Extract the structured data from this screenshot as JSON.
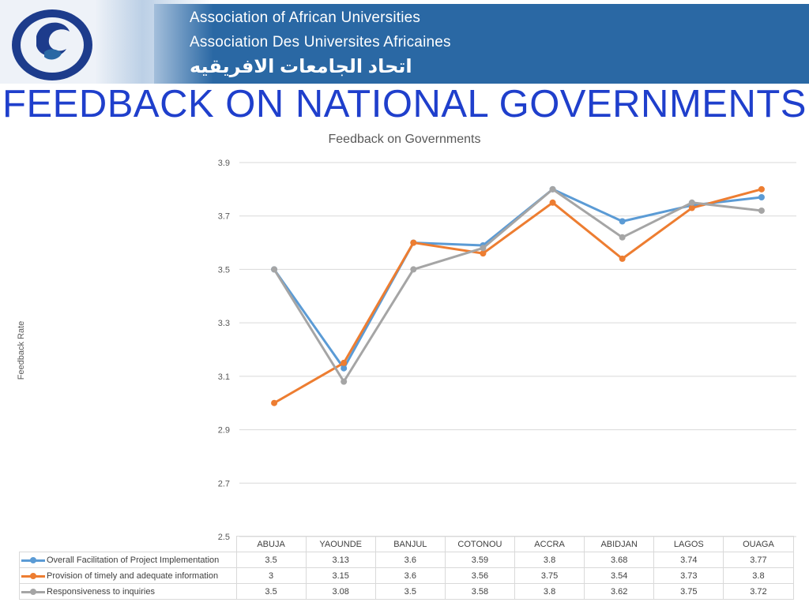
{
  "header": {
    "org_en": "Association of African Universities",
    "org_fr": "Association Des Universites Africaines",
    "org_ar": "اتحاد الجامعات الافريقيه"
  },
  "slide": {
    "title": "FEEDBACK ON NATIONAL GOVERNMENTS"
  },
  "chart_data": {
    "type": "line",
    "title": "Feedback on Governments",
    "xlabel": "",
    "ylabel": "Feedback Rate",
    "ylim": [
      2.5,
      3.9
    ],
    "yticks": [
      "3.9",
      "3.7",
      "3.5",
      "3.3",
      "3.1",
      "2.9",
      "2.7",
      "2.5"
    ],
    "grid": true,
    "legend": "data-table",
    "categories": [
      "ABUJA",
      "YAOUNDE",
      "BANJUL",
      "COTONOU",
      "ACCRA",
      "ABIDJAN",
      "LAGOS",
      "OUAGA"
    ],
    "series": [
      {
        "name": "Overall Facilitation of Project Implementation",
        "color": "#5b9bd5",
        "values": [
          3.5,
          3.13,
          3.6,
          3.59,
          3.8,
          3.68,
          3.74,
          3.77
        ],
        "labels": [
          "3.5",
          "3.13",
          "3.6",
          "3.59",
          "3.8",
          "3.68",
          "3.74",
          "3.77"
        ]
      },
      {
        "name": "Provision of timely and adequate information",
        "color": "#ed7d31",
        "values": [
          3,
          3.15,
          3.6,
          3.56,
          3.75,
          3.54,
          3.73,
          3.8
        ],
        "labels": [
          "3",
          "3.15",
          "3.6",
          "3.56",
          "3.75",
          "3.54",
          "3.73",
          "3.8"
        ]
      },
      {
        "name": "Responsiveness to inquiries",
        "color": "#a5a5a5",
        "values": [
          3.5,
          3.08,
          3.5,
          3.58,
          3.8,
          3.62,
          3.75,
          3.72
        ],
        "labels": [
          "3.5",
          "3.08",
          "3.5",
          "3.58",
          "3.8",
          "3.62",
          "3.75",
          "3.72"
        ]
      }
    ]
  }
}
